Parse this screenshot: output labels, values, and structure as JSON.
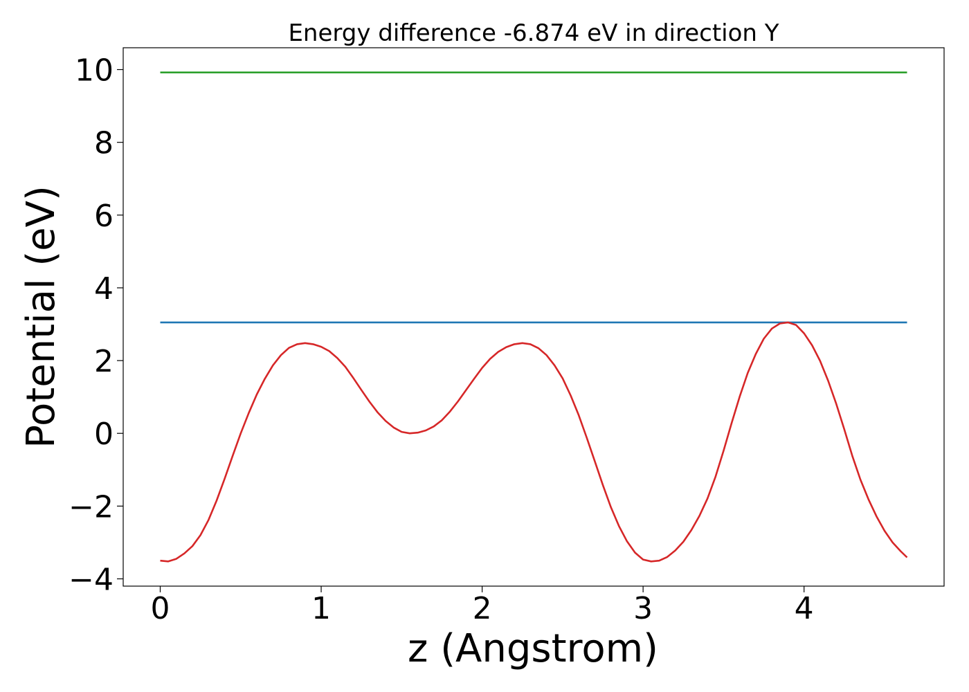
{
  "chart_data": {
    "type": "line",
    "title": "Energy difference -6.874 eV in direction Y",
    "xlabel": "z (Angstrom)",
    "ylabel": "Potential (eV)",
    "xlim": [
      -0.23,
      4.87
    ],
    "ylim": [
      -4.2,
      10.6
    ],
    "x_ticks": [
      0,
      1,
      2,
      3,
      4
    ],
    "x_tick_labels": [
      "0",
      "1",
      "2",
      "3",
      "4"
    ],
    "y_ticks": [
      -4,
      -2,
      0,
      2,
      4,
      6,
      8,
      10
    ],
    "y_tick_labels": [
      "−4",
      "−2",
      "0",
      "2",
      "4",
      "6",
      "8",
      "10"
    ],
    "grid": false,
    "legend": "none",
    "series": [
      {
        "color": "#2ca02c",
        "x": [
          0,
          4.64
        ],
        "y": [
          9.92,
          9.92
        ]
      },
      {
        "color": "#1f77b4",
        "x": [
          0,
          4.64
        ],
        "y": [
          3.05,
          3.05
        ]
      },
      {
        "color": "#d62728",
        "x": [
          0,
          0.05,
          0.1,
          0.15,
          0.2,
          0.25,
          0.3,
          0.35,
          0.4,
          0.45,
          0.5,
          0.55,
          0.6,
          0.65,
          0.7,
          0.75,
          0.8,
          0.85,
          0.9,
          0.95,
          1.0,
          1.05,
          1.1,
          1.15,
          1.2,
          1.25,
          1.3,
          1.35,
          1.4,
          1.45,
          1.5,
          1.55,
          1.6,
          1.65,
          1.7,
          1.75,
          1.8,
          1.85,
          1.9,
          1.95,
          2.0,
          2.05,
          2.1,
          2.15,
          2.2,
          2.25,
          2.3,
          2.35,
          2.4,
          2.45,
          2.5,
          2.55,
          2.6,
          2.65,
          2.7,
          2.75,
          2.8,
          2.85,
          2.9,
          2.95,
          3.0,
          3.05,
          3.1,
          3.15,
          3.2,
          3.25,
          3.3,
          3.35,
          3.4,
          3.45,
          3.5,
          3.55,
          3.6,
          3.65,
          3.7,
          3.75,
          3.8,
          3.85,
          3.9,
          3.95,
          4.0,
          4.05,
          4.1,
          4.15,
          4.2,
          4.25,
          4.3,
          4.35,
          4.4,
          4.45,
          4.5,
          4.55,
          4.6,
          4.64
        ],
        "y": [
          -3.5,
          -3.52,
          -3.45,
          -3.3,
          -3.1,
          -2.8,
          -2.38,
          -1.85,
          -1.25,
          -0.62,
          0.0,
          0.56,
          1.07,
          1.5,
          1.87,
          2.15,
          2.35,
          2.45,
          2.48,
          2.45,
          2.38,
          2.26,
          2.07,
          1.83,
          1.52,
          1.19,
          0.87,
          0.58,
          0.34,
          0.16,
          0.04,
          0.0,
          0.02,
          0.08,
          0.19,
          0.36,
          0.6,
          0.88,
          1.19,
          1.5,
          1.8,
          2.05,
          2.24,
          2.37,
          2.45,
          2.48,
          2.45,
          2.34,
          2.15,
          1.87,
          1.51,
          1.04,
          0.5,
          -0.12,
          -0.77,
          -1.42,
          -2.03,
          -2.55,
          -2.97,
          -3.28,
          -3.47,
          -3.52,
          -3.5,
          -3.4,
          -3.22,
          -2.98,
          -2.66,
          -2.27,
          -1.79,
          -1.19,
          -0.48,
          0.28,
          1.01,
          1.66,
          2.18,
          2.6,
          2.88,
          3.02,
          3.05,
          2.98,
          2.75,
          2.42,
          1.99,
          1.44,
          0.81,
          0.11,
          -0.62,
          -1.27,
          -1.81,
          -2.28,
          -2.68,
          -3.0,
          -3.24,
          -3.41
        ]
      }
    ]
  }
}
